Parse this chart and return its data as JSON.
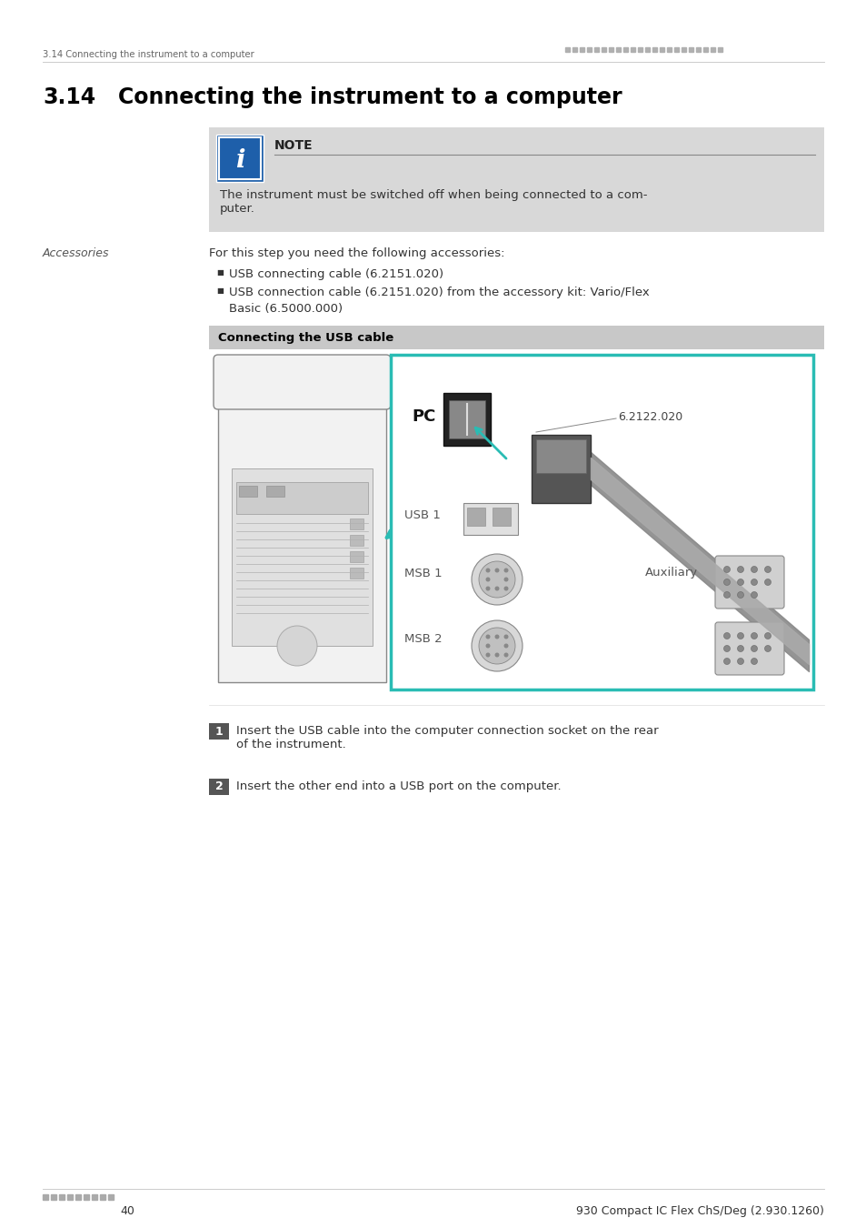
{
  "page_bg": "#ffffff",
  "header_text_left": "3.14 Connecting the instrument to a computer",
  "header_dots_color": "#b0b0b0",
  "title_num": "3.14",
  "title_text": "Connecting the instrument to a computer",
  "title_color": "#000000",
  "note_box_bg": "#d8d8d8",
  "note_box_border": "#bbbbbb",
  "note_icon_bg": "#1e5faa",
  "note_label": "NOTE",
  "note_body": "The instrument must be switched off when being connected to a com-\nputer.",
  "accessories_label": "Accessories",
  "accessories_text": "For this step you need the following accessories:",
  "bullet1": "USB connecting cable (6.2151.020)",
  "bullet2": "USB connection cable (6.2151.020) from the accessory kit: Vario/Flex",
  "bullet2b": "Basic (6.5000.000)",
  "section_bar_bg": "#c8c8c8",
  "section_bar_text": "Connecting the USB cable",
  "image_border_color": "#2abcb4",
  "pc_label": "PC",
  "part_number": "6.2122.020",
  "usb1_label": "USB 1",
  "msb1_label": "MSB 1",
  "msb2_label": "MSB 2",
  "aux_label": "Auxiliary",
  "step1_num": "1",
  "step1_text": "Insert the USB cable into the computer connection socket on the rear\nof the instrument.",
  "step2_num": "2",
  "step2_text": "Insert the other end into a USB port on the computer.",
  "footer_page": "40",
  "footer_right": "930 Compact IC Flex ChS/Deg (2.930.1260)"
}
